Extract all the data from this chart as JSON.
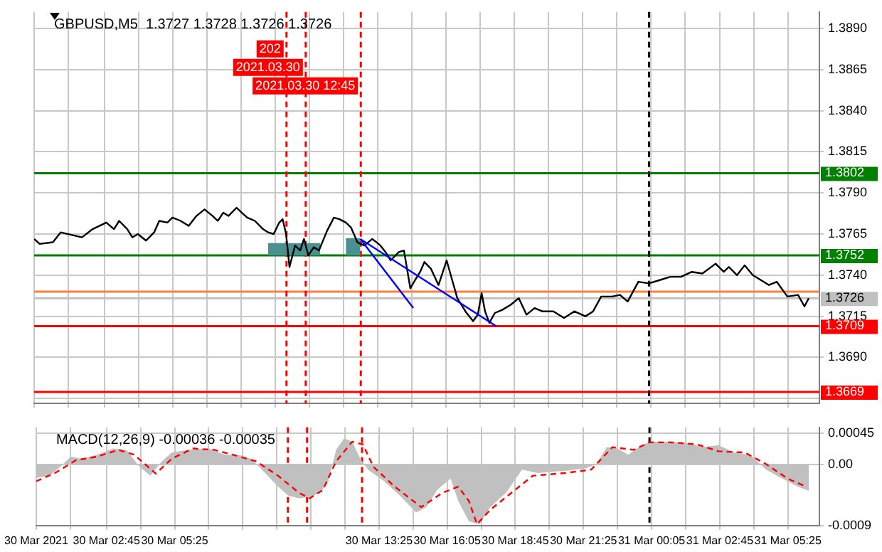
{
  "chart_data": [
    {
      "type": "line",
      "title": "GBPUSD,M5  1.3727 1.3728 1.3726 1.3726",
      "xlim": [
        "2021-03-30T00:00",
        "2021-03-31T06:39"
      ],
      "ylim": [
        1.3662,
        1.39
      ],
      "tick_labels": "y",
      "grid": true,
      "legend": false,
      "marker": "none",
      "xticks": [
        {
          "value": "2021-03-30T00:00",
          "label": null
        },
        {
          "value": "2021-03-30T01:20",
          "label": null
        },
        {
          "value": "2021-03-30T02:45",
          "label": null
        },
        {
          "value": "2021-03-30T04:05",
          "label": null
        },
        {
          "value": "2021-03-30T05:25",
          "label": null
        },
        {
          "value": "2021-03-30T06:45",
          "label": null
        },
        {
          "value": "2021-03-30T08:05",
          "label": null
        },
        {
          "value": "2021-03-30T09:25",
          "label": null
        },
        {
          "value": "2021-03-30T10:45",
          "label": null
        },
        {
          "value": "2021-03-30T12:05",
          "label": null
        },
        {
          "value": "2021-03-30T13:25",
          "label": null
        },
        {
          "value": "2021-03-30T14:45",
          "label": null
        },
        {
          "value": "2021-03-30T16:05",
          "label": null
        },
        {
          "value": "2021-03-30T17:25",
          "label": null
        },
        {
          "value": "2021-03-30T18:45",
          "label": null
        },
        {
          "value": "2021-03-30T20:05",
          "label": null
        },
        {
          "value": "2021-03-30T21:25",
          "label": null
        },
        {
          "value": "2021-03-30T22:45",
          "label": null
        },
        {
          "value": "2021-03-31T00:05",
          "label": null
        },
        {
          "value": "2021-03-31T01:25",
          "label": null
        },
        {
          "value": "2021-03-31T02:45",
          "label": null
        },
        {
          "value": "2021-03-31T04:05",
          "label": null
        },
        {
          "value": "2021-03-31T05:25",
          "label": null
        }
      ],
      "yticks": [
        {
          "value": 1.389,
          "label": "1.3890"
        },
        {
          "value": 1.3865,
          "label": "1.3865"
        },
        {
          "value": 1.384,
          "label": "1.3840"
        },
        {
          "value": 1.3815,
          "label": "1.3815"
        },
        {
          "value": 1.379,
          "label": "1.3790"
        },
        {
          "value": 1.3765,
          "label": "1.3765"
        },
        {
          "value": 1.374,
          "label": "1.3740"
        },
        {
          "value": 1.3715,
          "label": "1.3715"
        },
        {
          "value": 1.369,
          "label": "1.3690"
        },
        {
          "value": 1.3665,
          "label": null
        }
      ],
      "series": [
        {
          "color": "#4a9090",
          "x": [
            "2021-03-30T09:08",
            "2021-03-30T11:10"
          ],
          "values": [
            1.3759,
            1.3759
          ],
          "lower": [
            1.3752,
            1.3752
          ],
          "upper": [
            1.3759,
            1.3759
          ]
        },
        {
          "color": "#4a9090",
          "x": [
            "2021-03-30T12:10",
            "2021-03-30T12:44"
          ],
          "values": [
            1.3762,
            1.3762
          ],
          "lower": [
            1.3752,
            1.3752
          ],
          "upper": [
            1.3762,
            1.3762
          ]
        },
        {
          "color": "#000000",
          "x": [
            "2021-03-30T00:00",
            "2021-03-30T00:13",
            "2021-03-30T00:44",
            "2021-03-30T01:02",
            "2021-03-30T01:52",
            "2021-03-30T02:17",
            "2021-03-30T02:49",
            "2021-03-30T03:07",
            "2021-03-30T03:19",
            "2021-03-30T03:38",
            "2021-03-30T03:50",
            "2021-03-30T04:03",
            "2021-03-30T04:22",
            "2021-03-30T04:41",
            "2021-03-30T04:53",
            "2021-03-30T05:12",
            "2021-03-30T05:24",
            "2021-03-30T05:43",
            "2021-03-30T06:02",
            "2021-03-30T06:20",
            "2021-03-30T06:39",
            "2021-03-30T06:58",
            "2021-03-30T07:10",
            "2021-03-30T07:23",
            "2021-03-30T07:35",
            "2021-03-30T07:54",
            "2021-03-30T08:06",
            "2021-03-30T08:19",
            "2021-03-30T08:37",
            "2021-03-30T08:56",
            "2021-03-30T09:08",
            "2021-03-30T09:21",
            "2021-03-30T09:34",
            "2021-03-30T09:42",
            "2021-03-30T09:50",
            "2021-03-30T09:58",
            "2021-03-30T10:11",
            "2021-03-30T10:23",
            "2021-03-30T10:32",
            "2021-03-30T10:42",
            "2021-03-30T10:55",
            "2021-03-30T11:07",
            "2021-03-30T11:26",
            "2021-03-30T11:42",
            "2021-03-30T11:55",
            "2021-03-30T12:10",
            "2021-03-30T12:22",
            "2021-03-30T12:37",
            "2021-03-30T12:53",
            "2021-03-30T13:12",
            "2021-03-30T13:31",
            "2021-03-30T13:43",
            "2021-03-30T13:55",
            "2021-03-30T14:14",
            "2021-03-30T14:26",
            "2021-03-30T14:41",
            "2021-03-30T14:52",
            "2021-03-30T15:04",
            "2021-03-30T15:14",
            "2021-03-30T15:29",
            "2021-03-30T15:47",
            "2021-03-30T16:06",
            "2021-03-30T16:19",
            "2021-03-30T16:31",
            "2021-03-30T16:50",
            "2021-03-30T17:08",
            "2021-03-30T17:19",
            "2021-03-30T17:28",
            "2021-03-30T17:36",
            "2021-03-30T17:46",
            "2021-03-30T17:59",
            "2021-03-30T18:17",
            "2021-03-30T18:36",
            "2021-03-30T18:55",
            "2021-03-30T19:13",
            "2021-03-30T19:32",
            "2021-03-30T19:50",
            "2021-03-30T20:16",
            "2021-03-30T20:41",
            "2021-03-30T21:05",
            "2021-03-30T21:31",
            "2021-03-30T21:49",
            "2021-03-30T22:08",
            "2021-03-30T22:33",
            "2021-03-30T22:52",
            "2021-03-30T23:10",
            "2021-03-30T23:35",
            "2021-03-31T00:00",
            "2021-03-31T00:25",
            "2021-03-31T00:50",
            "2021-03-31T01:15",
            "2021-03-31T01:40",
            "2021-03-31T02:05",
            "2021-03-31T02:36",
            "2021-03-31T02:55",
            "2021-03-31T03:07",
            "2021-03-31T03:26",
            "2021-03-31T03:44",
            "2021-03-31T04:03",
            "2021-03-31T04:22",
            "2021-03-31T04:41",
            "2021-03-31T04:59",
            "2021-03-31T05:24",
            "2021-03-31T05:49",
            "2021-03-31T06:04",
            "2021-03-31T06:14"
          ],
          "values": [
            1.3762,
            1.3759,
            1.376,
            1.3766,
            1.3763,
            1.3768,
            1.3772,
            1.3768,
            1.3773,
            1.3768,
            1.3763,
            1.3765,
            1.3761,
            1.3766,
            1.3773,
            1.3772,
            1.3775,
            1.3773,
            1.377,
            1.3776,
            1.378,
            1.3776,
            1.3773,
            1.3778,
            1.3776,
            1.3781,
            1.3778,
            1.3775,
            1.3773,
            1.3768,
            1.3766,
            1.3765,
            1.3772,
            1.3774,
            1.3765,
            1.3745,
            1.3758,
            1.3755,
            1.3762,
            1.3752,
            1.3757,
            1.3755,
            1.3767,
            1.3775,
            1.3774,
            1.3772,
            1.3769,
            1.376,
            1.3758,
            1.3762,
            1.3758,
            1.3754,
            1.3749,
            1.3754,
            1.3755,
            1.3732,
            1.3737,
            1.3742,
            1.3748,
            1.3744,
            1.3734,
            1.3749,
            1.3737,
            1.3726,
            1.3718,
            1.3712,
            1.3716,
            1.3729,
            1.3718,
            1.3711,
            1.3717,
            1.3719,
            1.3722,
            1.3726,
            1.3716,
            1.372,
            1.3718,
            1.3718,
            1.3714,
            1.3718,
            1.3715,
            1.3718,
            1.3727,
            1.3727,
            1.3728,
            1.3724,
            1.3736,
            1.3735,
            1.3737,
            1.3739,
            1.3739,
            1.3742,
            1.3741,
            1.3747,
            1.3742,
            1.3745,
            1.374,
            1.3746,
            1.374,
            1.3737,
            1.3734,
            1.3736,
            1.3727,
            1.3728,
            1.3721,
            1.3726
          ]
        },
        {
          "color": "#0000ff",
          "x": [
            "2021-03-30T12:44",
            "2021-03-30T14:48"
          ],
          "values": [
            1.3762,
            1.372
          ]
        },
        {
          "color": "#0000ff",
          "x": [
            "2021-03-30T12:44",
            "2021-03-30T18:02"
          ],
          "values": [
            1.3762,
            1.3709
          ]
        }
      ],
      "ref_lines": [
        {
          "axis": "y",
          "value": 1.3802,
          "label": "1.3802",
          "color": "#008000"
        },
        {
          "axis": "y",
          "value": 1.3752,
          "label": "1.3752",
          "color": "#008000"
        },
        {
          "axis": "y",
          "value": 1.373,
          "label": null,
          "color": "#ff8040"
        },
        {
          "axis": "y",
          "value": 1.3726,
          "label": "1.3726",
          "color": "#c0c0c0"
        },
        {
          "axis": "y",
          "value": 1.3709,
          "label": "1.3709",
          "color": "#ff0000"
        },
        {
          "axis": "y",
          "value": 1.3669,
          "label": "1.3669",
          "color": "#ff0000"
        },
        {
          "axis": "x",
          "value": "2021-03-30T09:51",
          "label": "202",
          "color": "#ff0000",
          "line_style": "dashed"
        },
        {
          "axis": "x",
          "value": "2021-03-30T10:36",
          "label": "2021.03.30",
          "color": "#ff0000",
          "line_style": "dashed"
        },
        {
          "axis": "x",
          "value": "2021-03-30T12:45",
          "label": "2021.03.30 12:45",
          "color": "#ff0000",
          "line_style": "dashed"
        },
        {
          "axis": "x",
          "value": "2021-03-31T00:00",
          "label": null,
          "color": "#000000",
          "line_style": "dashed"
        }
      ]
    },
    {
      "type": "line",
      "title": "MACD(12,26,9) -0.00036 -0.00035",
      "xlim": [
        "2021-03-30T00:00",
        "2021-03-31T06:39"
      ],
      "ylim": [
        -0.0009,
        0.00054
      ],
      "grid": true,
      "legend": false,
      "marker": "none",
      "xticks": [
        {
          "value": "2021-03-30T00:00",
          "label": "30 Mar 2021"
        },
        {
          "value": "2021-03-30T01:20",
          "label": null
        },
        {
          "value": "2021-03-30T02:45",
          "label": "30 Mar 02:45"
        },
        {
          "value": "2021-03-30T04:05",
          "label": null
        },
        {
          "value": "2021-03-30T05:25",
          "label": "30 Mar 05:25"
        },
        {
          "value": "2021-03-30T06:45",
          "label": null
        },
        {
          "value": "2021-03-30T08:05",
          "label": null
        },
        {
          "value": "2021-03-30T09:25",
          "label": null
        },
        {
          "value": "2021-03-30T10:45",
          "label": null
        },
        {
          "value": "2021-03-30T12:05",
          "label": null
        },
        {
          "value": "2021-03-30T13:25",
          "label": "30 Mar 13:25"
        },
        {
          "value": "2021-03-30T14:45",
          "label": null
        },
        {
          "value": "2021-03-30T16:05",
          "label": "30 Mar 16:05"
        },
        {
          "value": "2021-03-30T17:25",
          "label": null
        },
        {
          "value": "2021-03-30T18:45",
          "label": "30 Mar 18:45"
        },
        {
          "value": "2021-03-30T20:05",
          "label": null
        },
        {
          "value": "2021-03-30T21:25",
          "label": "30 Mar 21:25"
        },
        {
          "value": "2021-03-30T22:45",
          "label": null
        },
        {
          "value": "2021-03-31T00:05",
          "label": "31 Mar 00:05"
        },
        {
          "value": "2021-03-31T01:25",
          "label": null
        },
        {
          "value": "2021-03-31T02:45",
          "label": "31 Mar 02:45"
        },
        {
          "value": "2021-03-31T04:05",
          "label": null
        },
        {
          "value": "2021-03-31T05:25",
          "label": "31 Mar 05:25"
        }
      ],
      "yticks": [
        0.00045,
        {
          "value": 0,
          "label": "0.00"
        },
        -0.0009
      ],
      "series": [
        {
          "type": "area",
          "color": "#c0c0c0",
          "x": [
            "2021-03-30T00:00",
            "2021-03-30T00:31",
            "2021-03-30T00:56",
            "2021-03-30T01:21",
            "2021-03-30T01:46",
            "2021-03-30T02:23",
            "2021-03-30T03:01",
            "2021-03-30T03:32",
            "2021-03-30T04:03",
            "2021-03-30T04:28",
            "2021-03-30T04:53",
            "2021-03-30T05:18",
            "2021-03-30T05:55",
            "2021-03-30T06:45",
            "2021-03-30T07:23",
            "2021-03-30T08:00",
            "2021-03-30T08:25",
            "2021-03-30T08:50",
            "2021-03-30T09:28",
            "2021-03-30T09:52",
            "2021-03-30T10:17",
            "2021-03-30T10:42",
            "2021-03-30T11:07",
            "2021-03-30T11:26",
            "2021-03-30T11:44",
            "2021-03-30T12:03",
            "2021-03-30T12:22",
            "2021-03-30T12:41",
            "2021-03-30T12:59",
            "2021-03-30T13:37",
            "2021-03-30T14:14",
            "2021-03-30T14:52",
            "2021-03-30T15:16",
            "2021-03-30T15:41",
            "2021-03-30T16:13",
            "2021-03-30T16:31",
            "2021-03-30T16:56",
            "2021-03-30T17:21",
            "2021-03-30T17:46",
            "2021-03-30T18:23",
            "2021-03-30T19:01",
            "2021-03-30T19:38",
            "2021-03-30T20:16",
            "2021-03-30T20:53",
            "2021-03-30T21:31",
            "2021-03-30T21:55",
            "2021-03-30T22:20",
            "2021-03-30T22:45",
            "2021-03-30T23:10",
            "2021-03-30T23:35",
            "2021-03-31T00:00",
            "2021-03-31T00:50",
            "2021-03-31T01:28",
            "2021-03-31T02:05",
            "2021-03-31T02:42",
            "2021-03-31T03:20",
            "2021-03-31T03:57",
            "2021-03-31T04:34",
            "2021-03-31T05:12",
            "2021-03-31T05:49",
            "2021-03-31T06:14"
          ],
          "values": [
            -0.0002,
            -0.00017,
            -4e-05,
            0.00011,
            8e-05,
            0.00014,
            0.00023,
            0.00021,
            -4e-05,
            -0.00017,
            3e-05,
            0.00017,
            0.00021,
            0.00023,
            0.00014,
            0.00013,
            8e-05,
            -8e-05,
            -0.00033,
            -0.00046,
            -0.0005,
            -0.00048,
            -0.00042,
            -0.00025,
            0.00021,
            0.00038,
            0.00033,
            8e-05,
            -8e-05,
            -0.00025,
            -0.00046,
            -0.00071,
            -0.00063,
            -0.00038,
            -0.00021,
            -0.00054,
            -0.00084,
            -0.00088,
            -0.00063,
            -0.00042,
            -8e-05,
            -0.00013,
            -0.00011,
            -9e-05,
            -6e-05,
            0,
            0.00025,
            0.00023,
            0.00014,
            0.00025,
            0.00033,
            0.00033,
            0.00031,
            0.00025,
            0.00028,
            0.00017,
            0.00013,
            -8e-05,
            -0.00021,
            -0.00033,
            -0.00039
          ]
        },
        {
          "color": "#ff0000",
          "line_style": "dashed",
          "x": [
            "2021-03-30T00:00",
            "2021-03-30T00:44",
            "2021-03-30T01:34",
            "2021-03-30T02:23",
            "2021-03-30T03:13",
            "2021-03-30T03:50",
            "2021-03-30T04:41",
            "2021-03-30T05:18",
            "2021-03-30T06:08",
            "2021-03-30T06:58",
            "2021-03-30T07:47",
            "2021-03-30T08:37",
            "2021-03-30T09:28",
            "2021-03-30T10:17",
            "2021-03-30T10:42",
            "2021-03-30T11:13",
            "2021-03-30T11:44",
            "2021-03-30T12:22",
            "2021-03-30T12:47",
            "2021-03-30T13:12",
            "2021-03-30T14:02",
            "2021-03-30T15:04",
            "2021-03-30T15:54",
            "2021-03-30T16:31",
            "2021-03-30T16:56",
            "2021-03-30T17:15",
            "2021-03-30T17:46",
            "2021-03-30T18:36",
            "2021-03-30T19:26",
            "2021-03-30T20:41",
            "2021-03-30T21:43",
            "2021-03-30T22:33",
            "2021-03-30T23:23",
            "2021-03-31T00:00",
            "2021-03-31T00:50",
            "2021-03-31T01:52",
            "2021-03-31T02:42",
            "2021-03-31T03:44",
            "2021-03-31T04:34",
            "2021-03-31T05:24",
            "2021-03-31T06:08"
          ],
          "values": [
            -0.00025,
            -0.00013,
            6e-05,
            0.00011,
            0.00021,
            0.00014,
            -0.00014,
            8e-05,
            0.00023,
            0.00021,
            0.00013,
            4e-05,
            -0.00017,
            -0.00042,
            -0.0005,
            -0.00038,
            4e-05,
            0.00033,
            0.00029,
            -4e-05,
            -0.00033,
            -0.00063,
            -0.00042,
            -0.00033,
            -0.00054,
            -0.00088,
            -0.00067,
            -0.00042,
            -0.00017,
            -0.00013,
            -8e-05,
            0.00025,
            0.00021,
            0.00032,
            0.00032,
            0.00029,
            0.00019,
            0.00017,
            0,
            -0.00021,
            -0.00033
          ]
        }
      ],
      "ref_lines": [
        {
          "axis": "x",
          "value": "2021-03-30T09:51",
          "color": "#ff0000",
          "line_style": "dashed"
        },
        {
          "axis": "x",
          "value": "2021-03-30T10:36",
          "color": "#ff0000",
          "line_style": "dashed"
        },
        {
          "axis": "x",
          "value": "2021-03-30T12:45",
          "color": "#ff0000",
          "line_style": "dashed"
        },
        {
          "axis": "x",
          "value": "2021-03-31T00:00",
          "color": "#000000",
          "line_style": "dashed"
        }
      ]
    }
  ]
}
